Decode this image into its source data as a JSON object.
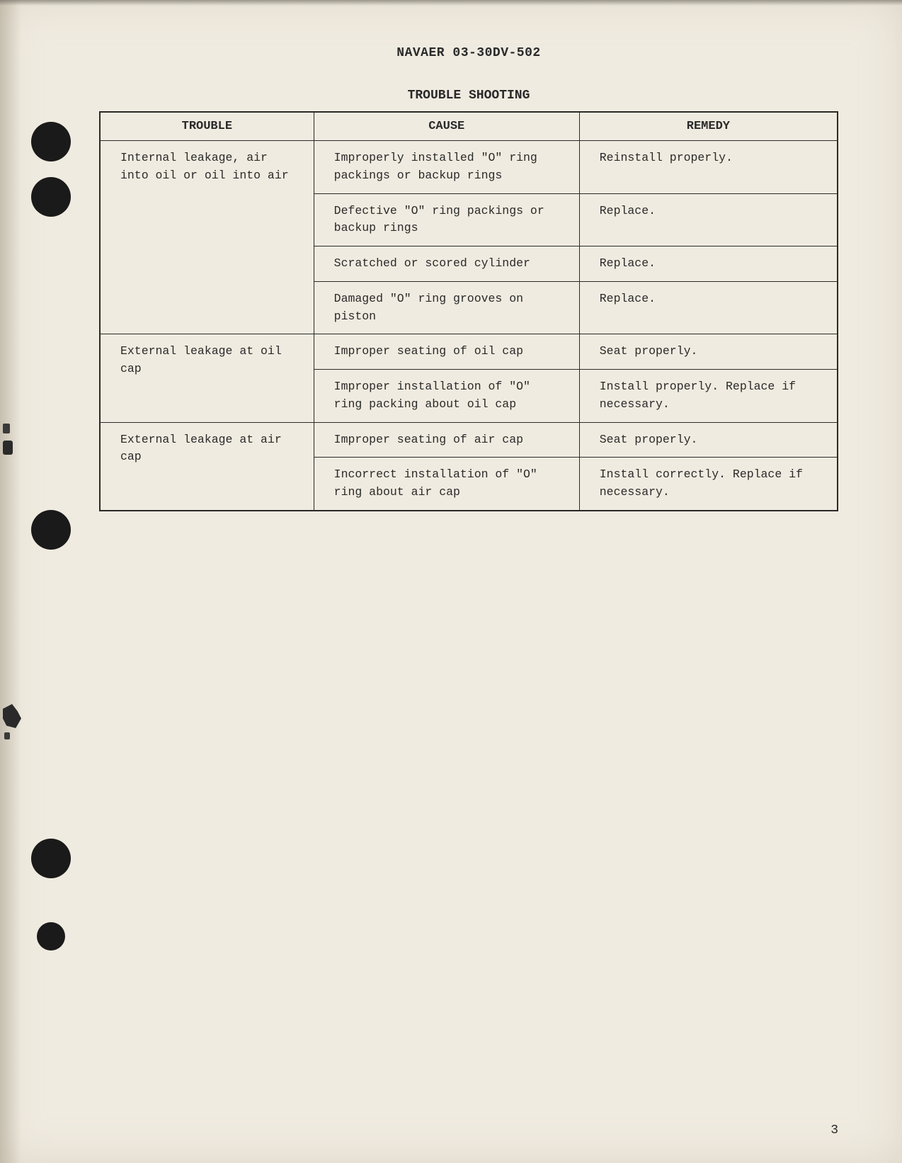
{
  "document": {
    "id": "NAVAER 03-30DV-502",
    "section_title": "TROUBLE SHOOTING",
    "page_number": "3"
  },
  "table": {
    "headers": {
      "trouble": "TROUBLE",
      "cause": "CAUSE",
      "remedy": "REMEDY"
    },
    "rows": [
      {
        "trouble": "Internal leakage, air into oil or oil into air",
        "trouble_rowspan": 4,
        "cause": "Improperly installed \"O\" ring packings or backup rings",
        "remedy": "Reinstall properly."
      },
      {
        "cause": "Defective \"O\" ring packings or backup rings",
        "remedy": "Replace."
      },
      {
        "cause": "Scratched or scored cylinder",
        "remedy": "Replace."
      },
      {
        "cause": "Damaged \"O\" ring grooves on piston",
        "remedy": "Replace."
      },
      {
        "trouble": "External leakage at oil cap",
        "trouble_rowspan": 2,
        "cause": "Improper seating of oil cap",
        "remedy": "Seat properly."
      },
      {
        "cause": "Improper installation of \"O\" ring packing about oil cap",
        "remedy": "Install properly. Replace if necessary."
      },
      {
        "trouble": "External leakage at air cap",
        "trouble_rowspan": 2,
        "cause": "Improper seating of air cap",
        "remedy": "Seat properly."
      },
      {
        "cause": "Incorrect installation of \"O\" ring about air cap",
        "remedy": "Install correctly. Replace if necessary."
      }
    ]
  },
  "styling": {
    "page_bg": "#f0ebe0",
    "text_color": "#2a2a2a",
    "border_color": "#2a2a2a",
    "hole_color": "#1a1a1a",
    "font_family": "Courier New"
  }
}
